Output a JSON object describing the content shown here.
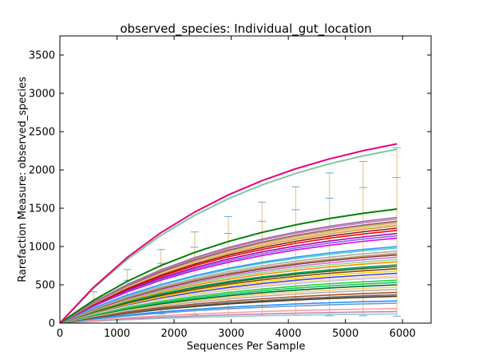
{
  "chart_data": {
    "type": "line",
    "title": "observed_species: Individual_gut_location",
    "xlabel": "Sequences Per Sample",
    "ylabel": "Rarefaction Measure: observed_species",
    "xlim": [
      0,
      6500
    ],
    "ylim": [
      0,
      3750
    ],
    "x_ticks": [
      0,
      1000,
      2000,
      3000,
      4000,
      5000,
      6000
    ],
    "y_ticks": [
      0,
      500,
      1000,
      1500,
      2000,
      2500,
      3000,
      3500
    ],
    "grid": false,
    "legend": "none",
    "x": [
      0,
      590,
      1180,
      1770,
      2360,
      2950,
      3540,
      4130,
      4720,
      5310,
      5900
    ],
    "colors": {
      "errorbar_highlight": "#f5c48a",
      "errorbar_cap": "#5da9e0",
      "axes": "#000000"
    },
    "series": [
      {
        "color": "#e6007e",
        "final": 2340,
        "errorbar": false
      },
      {
        "color": "#7fc99b",
        "final": 2270,
        "errorbar": true,
        "err_color": "#5da9e0"
      },
      {
        "color": "#008000",
        "final": 1490,
        "errorbar": false
      },
      {
        "color": "#9e6f9e",
        "final": 1380,
        "errorbar": false
      },
      {
        "color": "#c77bc8",
        "final": 1360,
        "errorbar": false
      },
      {
        "color": "#8f5b5b",
        "final": 1330,
        "errorbar": false
      },
      {
        "color": "#c8b46a",
        "final": 1310,
        "errorbar": false
      },
      {
        "color": "#f0c0a0",
        "final": 1290,
        "errorbar": false
      },
      {
        "color": "#e0a030",
        "final": 1270,
        "errorbar": false
      },
      {
        "color": "#8b1a1a",
        "final": 1240,
        "errorbar": false
      },
      {
        "color": "#ff0000",
        "final": 1210,
        "errorbar": false
      },
      {
        "color": "#b000b0",
        "final": 1170,
        "errorbar": false
      },
      {
        "color": "#7b68ee",
        "final": 1140,
        "errorbar": false
      },
      {
        "color": "#e000e0",
        "final": 1110,
        "errorbar": false
      },
      {
        "color": "#3399ff",
        "final": 1000,
        "errorbar": false
      },
      {
        "color": "#55d0c0",
        "final": 980,
        "errorbar": false
      },
      {
        "color": "#aaaaaa",
        "final": 940,
        "errorbar": false
      },
      {
        "color": "#c09060",
        "final": 910,
        "errorbar": false
      },
      {
        "color": "#7c3f3f",
        "final": 890,
        "errorbar": false
      },
      {
        "color": "#d070d0",
        "final": 860,
        "errorbar": false
      },
      {
        "color": "#88dd88",
        "final": 830,
        "errorbar": false
      },
      {
        "color": "#ff8c00",
        "final": 800,
        "errorbar": false
      },
      {
        "color": "#00a060",
        "final": 760,
        "errorbar": false
      },
      {
        "color": "#206020",
        "final": 740,
        "errorbar": false
      },
      {
        "color": "#884400",
        "final": 710,
        "errorbar": false
      },
      {
        "color": "#ffd700",
        "final": 680,
        "errorbar": false
      },
      {
        "color": "#4040ff",
        "final": 650,
        "errorbar": false
      },
      {
        "color": "#ffe080",
        "final": 620,
        "errorbar": false
      },
      {
        "color": "#c0c0ff",
        "final": 600,
        "errorbar": false
      },
      {
        "color": "#33cc33",
        "final": 560,
        "errorbar": false
      },
      {
        "color": "#00cc66",
        "final": 530,
        "errorbar": false
      },
      {
        "color": "#006633",
        "final": 500,
        "errorbar": false
      },
      {
        "color": "#ffcc66",
        "final": 470,
        "errorbar": false
      },
      {
        "color": "#b0b0b0",
        "final": 440,
        "errorbar": false
      },
      {
        "color": "#a0522d",
        "final": 400,
        "errorbar": false
      },
      {
        "color": "#666666",
        "final": 370,
        "errorbar": false
      },
      {
        "color": "#553311",
        "final": 350,
        "errorbar": false
      },
      {
        "color": "#1e90ff",
        "final": 290,
        "errorbar": false
      },
      {
        "color": "#6699cc",
        "final": 260,
        "errorbar": false
      },
      {
        "color": "#ff9999",
        "final": 190,
        "errorbar": false
      },
      {
        "color": "#bb88bb",
        "final": 150,
        "errorbar": false
      },
      {
        "color": "#99cccc",
        "final": 120,
        "errorbar": false
      }
    ],
    "error_bars": [
      {
        "x": 590,
        "low": 150,
        "high": 410
      },
      {
        "x": 1180,
        "low": 130,
        "high": 700
      },
      {
        "x": 1770,
        "low": 120,
        "high": 960
      },
      {
        "x": 2360,
        "low": 110,
        "high": 1190
      },
      {
        "x": 2950,
        "low": 105,
        "high": 1390
      },
      {
        "x": 3540,
        "low": 100,
        "high": 1580
      },
      {
        "x": 4130,
        "low": 100,
        "high": 1780
      },
      {
        "x": 4720,
        "low": 95,
        "high": 1960
      },
      {
        "x": 5310,
        "low": 95,
        "high": 2110
      },
      {
        "x": 5900,
        "low": 90,
        "high": 2290
      }
    ],
    "mid_error_points": [
      {
        "x": 1180,
        "y": 560
      },
      {
        "x": 1770,
        "y": 780
      },
      {
        "x": 2360,
        "y": 990
      },
      {
        "x": 2950,
        "y": 1170
      },
      {
        "x": 3540,
        "y": 1330
      },
      {
        "x": 4130,
        "y": 1480
      },
      {
        "x": 4720,
        "y": 1630
      },
      {
        "x": 5310,
        "y": 1770
      },
      {
        "x": 5900,
        "y": 1900
      }
    ]
  }
}
